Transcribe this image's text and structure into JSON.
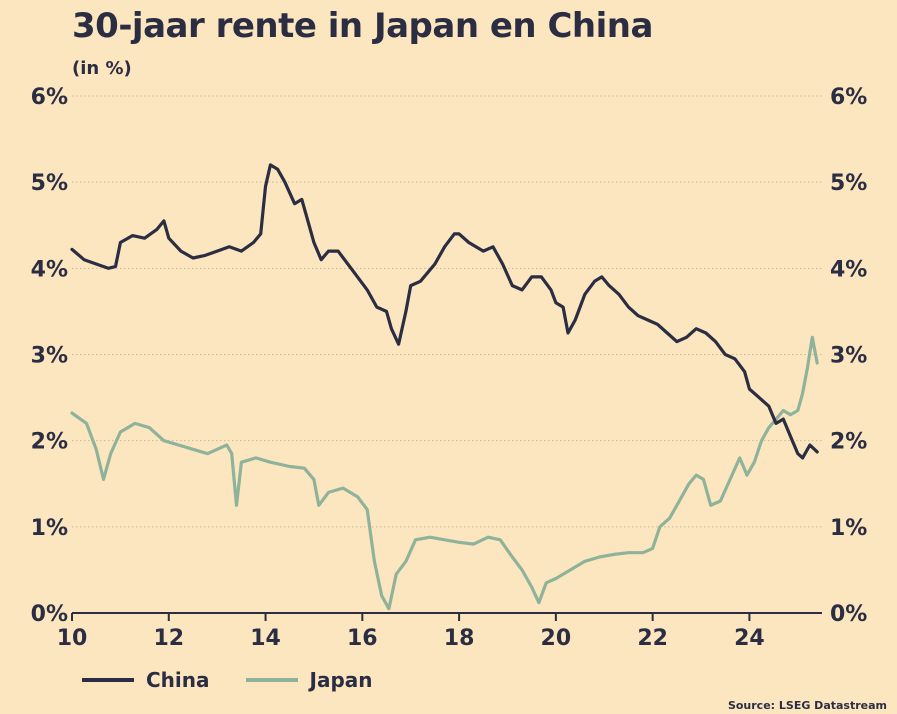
{
  "title": "30-jaar rente in Japan en China",
  "subtitle": "(in %)",
  "source": "Source: LSEG Datastream",
  "colors": {
    "background": "#fce6c0",
    "china": "#2b2d42",
    "japan": "#8fb39a",
    "grid": "#c9b89a",
    "text": "#2b2d42"
  },
  "chart_data": {
    "type": "line",
    "title": "30-jaar rente in Japan en China",
    "subtitle": "(in %)",
    "xlim": [
      2010,
      2025.5
    ],
    "ylim": [
      0,
      6
    ],
    "x_ticks": [
      2010,
      2012,
      2014,
      2016,
      2018,
      2020,
      2022,
      2024
    ],
    "x_tick_labels": [
      "10",
      "12",
      "14",
      "16",
      "18",
      "20",
      "22",
      "24"
    ],
    "y_ticks": [
      0,
      1,
      2,
      3,
      4,
      5,
      6
    ],
    "y_tick_labels": [
      "0%",
      "1%",
      "2%",
      "3%",
      "4%",
      "5%",
      "6%"
    ],
    "y_axis_sides": [
      "left",
      "right"
    ],
    "grid": "horizontal dotted",
    "legend_position": "bottom-left",
    "series": [
      {
        "name": "China",
        "color": "#2b2d42",
        "points": [
          [
            2010.0,
            4.22
          ],
          [
            2010.25,
            4.1
          ],
          [
            2010.5,
            4.05
          ],
          [
            2010.75,
            4.0
          ],
          [
            2010.9,
            4.02
          ],
          [
            2011.0,
            4.3
          ],
          [
            2011.25,
            4.38
          ],
          [
            2011.5,
            4.35
          ],
          [
            2011.75,
            4.45
          ],
          [
            2011.9,
            4.55
          ],
          [
            2012.0,
            4.35
          ],
          [
            2012.25,
            4.2
          ],
          [
            2012.5,
            4.12
          ],
          [
            2012.75,
            4.15
          ],
          [
            2013.0,
            4.2
          ],
          [
            2013.25,
            4.25
          ],
          [
            2013.5,
            4.2
          ],
          [
            2013.75,
            4.3
          ],
          [
            2013.9,
            4.4
          ],
          [
            2014.0,
            4.95
          ],
          [
            2014.1,
            5.2
          ],
          [
            2014.25,
            5.15
          ],
          [
            2014.4,
            5.0
          ],
          [
            2014.6,
            4.75
          ],
          [
            2014.75,
            4.8
          ],
          [
            2014.9,
            4.5
          ],
          [
            2015.0,
            4.3
          ],
          [
            2015.15,
            4.1
          ],
          [
            2015.3,
            4.2
          ],
          [
            2015.5,
            4.2
          ],
          [
            2015.7,
            4.05
          ],
          [
            2015.9,
            3.9
          ],
          [
            2016.1,
            3.75
          ],
          [
            2016.3,
            3.55
          ],
          [
            2016.5,
            3.5
          ],
          [
            2016.6,
            3.3
          ],
          [
            2016.75,
            3.12
          ],
          [
            2016.9,
            3.5
          ],
          [
            2017.0,
            3.8
          ],
          [
            2017.2,
            3.85
          ],
          [
            2017.5,
            4.05
          ],
          [
            2017.7,
            4.25
          ],
          [
            2017.9,
            4.4
          ],
          [
            2018.0,
            4.4
          ],
          [
            2018.2,
            4.3
          ],
          [
            2018.5,
            4.2
          ],
          [
            2018.7,
            4.25
          ],
          [
            2018.9,
            4.05
          ],
          [
            2019.1,
            3.8
          ],
          [
            2019.3,
            3.75
          ],
          [
            2019.5,
            3.9
          ],
          [
            2019.7,
            3.9
          ],
          [
            2019.9,
            3.75
          ],
          [
            2020.0,
            3.6
          ],
          [
            2020.15,
            3.55
          ],
          [
            2020.25,
            3.25
          ],
          [
            2020.4,
            3.4
          ],
          [
            2020.6,
            3.7
          ],
          [
            2020.8,
            3.85
          ],
          [
            2020.95,
            3.9
          ],
          [
            2021.1,
            3.8
          ],
          [
            2021.3,
            3.7
          ],
          [
            2021.5,
            3.55
          ],
          [
            2021.7,
            3.45
          ],
          [
            2021.9,
            3.4
          ],
          [
            2022.1,
            3.35
          ],
          [
            2022.3,
            3.25
          ],
          [
            2022.5,
            3.15
          ],
          [
            2022.7,
            3.2
          ],
          [
            2022.9,
            3.3
          ],
          [
            2023.1,
            3.25
          ],
          [
            2023.3,
            3.15
          ],
          [
            2023.5,
            3.0
          ],
          [
            2023.7,
            2.95
          ],
          [
            2023.9,
            2.8
          ],
          [
            2024.0,
            2.6
          ],
          [
            2024.2,
            2.5
          ],
          [
            2024.4,
            2.4
          ],
          [
            2024.55,
            2.2
          ],
          [
            2024.7,
            2.25
          ],
          [
            2024.85,
            2.05
          ],
          [
            2025.0,
            1.85
          ],
          [
            2025.1,
            1.8
          ],
          [
            2025.25,
            1.95
          ],
          [
            2025.4,
            1.87
          ]
        ]
      },
      {
        "name": "Japan",
        "color": "#8fb39a",
        "points": [
          [
            2010.0,
            2.32
          ],
          [
            2010.3,
            2.2
          ],
          [
            2010.5,
            1.9
          ],
          [
            2010.65,
            1.55
          ],
          [
            2010.8,
            1.85
          ],
          [
            2011.0,
            2.1
          ],
          [
            2011.3,
            2.2
          ],
          [
            2011.6,
            2.15
          ],
          [
            2011.9,
            2.0
          ],
          [
            2012.2,
            1.95
          ],
          [
            2012.5,
            1.9
          ],
          [
            2012.8,
            1.85
          ],
          [
            2013.0,
            1.9
          ],
          [
            2013.2,
            1.95
          ],
          [
            2013.3,
            1.85
          ],
          [
            2013.4,
            1.25
          ],
          [
            2013.5,
            1.75
          ],
          [
            2013.8,
            1.8
          ],
          [
            2014.1,
            1.75
          ],
          [
            2014.5,
            1.7
          ],
          [
            2014.8,
            1.68
          ],
          [
            2015.0,
            1.55
          ],
          [
            2015.1,
            1.25
          ],
          [
            2015.3,
            1.4
          ],
          [
            2015.6,
            1.45
          ],
          [
            2015.9,
            1.35
          ],
          [
            2016.1,
            1.2
          ],
          [
            2016.25,
            0.6
          ],
          [
            2016.4,
            0.2
          ],
          [
            2016.55,
            0.05
          ],
          [
            2016.7,
            0.45
          ],
          [
            2016.9,
            0.6
          ],
          [
            2017.1,
            0.85
          ],
          [
            2017.4,
            0.88
          ],
          [
            2017.7,
            0.85
          ],
          [
            2018.0,
            0.82
          ],
          [
            2018.3,
            0.8
          ],
          [
            2018.6,
            0.88
          ],
          [
            2018.85,
            0.85
          ],
          [
            2019.1,
            0.65
          ],
          [
            2019.3,
            0.5
          ],
          [
            2019.5,
            0.3
          ],
          [
            2019.65,
            0.12
          ],
          [
            2019.8,
            0.35
          ],
          [
            2020.0,
            0.4
          ],
          [
            2020.3,
            0.5
          ],
          [
            2020.6,
            0.6
          ],
          [
            2020.9,
            0.65
          ],
          [
            2021.2,
            0.68
          ],
          [
            2021.5,
            0.7
          ],
          [
            2021.8,
            0.7
          ],
          [
            2022.0,
            0.75
          ],
          [
            2022.15,
            1.0
          ],
          [
            2022.35,
            1.1
          ],
          [
            2022.55,
            1.3
          ],
          [
            2022.75,
            1.5
          ],
          [
            2022.9,
            1.6
          ],
          [
            2023.05,
            1.55
          ],
          [
            2023.2,
            1.25
          ],
          [
            2023.4,
            1.3
          ],
          [
            2023.6,
            1.55
          ],
          [
            2023.8,
            1.8
          ],
          [
            2023.95,
            1.6
          ],
          [
            2024.1,
            1.75
          ],
          [
            2024.25,
            2.0
          ],
          [
            2024.4,
            2.15
          ],
          [
            2024.55,
            2.25
          ],
          [
            2024.7,
            2.35
          ],
          [
            2024.85,
            2.3
          ],
          [
            2025.0,
            2.35
          ],
          [
            2025.1,
            2.55
          ],
          [
            2025.2,
            2.85
          ],
          [
            2025.3,
            3.2
          ],
          [
            2025.4,
            2.9
          ]
        ]
      }
    ]
  }
}
